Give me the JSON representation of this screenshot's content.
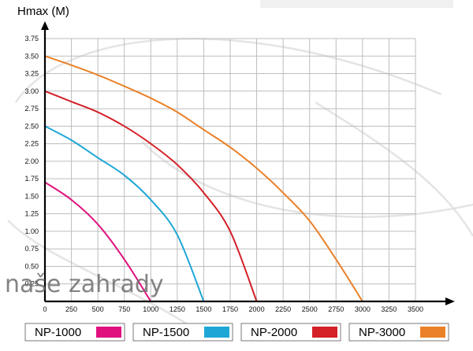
{
  "watermark": "naše zahrady",
  "chart_data": {
    "type": "line",
    "xlabel": "",
    "ylabel": "Hmax (M)",
    "xlim": [
      0,
      3500
    ],
    "ylim": [
      0,
      3.75
    ],
    "x_ticks": [
      0,
      250,
      500,
      750,
      1000,
      1250,
      1500,
      1750,
      2000,
      2250,
      2500,
      2750,
      3000,
      3250,
      3500
    ],
    "y_ticks": [
      0,
      0.25,
      0.5,
      0.75,
      1.0,
      1.25,
      1.5,
      1.75,
      2.0,
      2.25,
      2.5,
      2.75,
      3.0,
      3.25,
      3.5,
      3.75
    ],
    "x_tick_labels": [
      "0",
      "250",
      "500",
      "750",
      "1000",
      "1250",
      "1500",
      "1750",
      "2000",
      "2250",
      "2500",
      "2750",
      "3000",
      "3250",
      "3500"
    ],
    "y_tick_labels": [
      "",
      "0.25",
      "0.50",
      "0.75",
      "1.00",
      "1.25",
      "1.50",
      "1.75",
      "2.00",
      "2.25",
      "2.50",
      "2.75",
      "3.00",
      "3.25",
      "3.50",
      "3.75"
    ],
    "grid": true,
    "legend_position": "bottom",
    "series": [
      {
        "name": "NP-1000",
        "color": "#e0117f",
        "points": [
          [
            0,
            1.7
          ],
          [
            250,
            1.45
          ],
          [
            500,
            1.1
          ],
          [
            750,
            0.6
          ],
          [
            1000,
            0
          ]
        ]
      },
      {
        "name": "NP-1500",
        "color": "#1ea7d6",
        "points": [
          [
            0,
            2.5
          ],
          [
            250,
            2.3
          ],
          [
            500,
            2.05
          ],
          [
            750,
            1.8
          ],
          [
            1000,
            1.45
          ],
          [
            1250,
            0.95
          ],
          [
            1500,
            0
          ]
        ]
      },
      {
        "name": "NP-2000",
        "color": "#d42027",
        "points": [
          [
            0,
            3.0
          ],
          [
            250,
            2.85
          ],
          [
            500,
            2.7
          ],
          [
            750,
            2.5
          ],
          [
            1000,
            2.25
          ],
          [
            1250,
            1.95
          ],
          [
            1500,
            1.55
          ],
          [
            1750,
            1.0
          ],
          [
            2000,
            0
          ]
        ]
      },
      {
        "name": "NP-3000",
        "color": "#ea8128",
        "points": [
          [
            0,
            3.5
          ],
          [
            250,
            3.37
          ],
          [
            500,
            3.23
          ],
          [
            750,
            3.07
          ],
          [
            1000,
            2.9
          ],
          [
            1250,
            2.7
          ],
          [
            1500,
            2.45
          ],
          [
            1750,
            2.2
          ],
          [
            2000,
            1.9
          ],
          [
            2250,
            1.55
          ],
          [
            2500,
            1.15
          ],
          [
            2750,
            0.6
          ],
          [
            3000,
            0
          ]
        ]
      }
    ]
  }
}
